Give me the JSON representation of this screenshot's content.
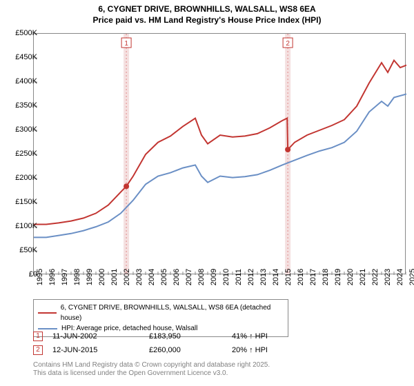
{
  "title_line1": "6, CYGNET DRIVE, BROWNHILLS, WALSALL, WS8 6EA",
  "title_line2": "Price paid vs. HM Land Registry's House Price Index (HPI)",
  "chart": {
    "type": "line",
    "background_color": "#ffffff",
    "border_color": "#888888",
    "tick_font_size": 11,
    "x": {
      "min": 1995,
      "max": 2025,
      "ticks": [
        1995,
        1996,
        1997,
        1998,
        1999,
        2000,
        2001,
        2002,
        2003,
        2004,
        2005,
        2006,
        2007,
        2008,
        2009,
        2010,
        2011,
        2012,
        2013,
        2014,
        2015,
        2016,
        2017,
        2018,
        2019,
        2020,
        2021,
        2022,
        2023,
        2024,
        2025
      ]
    },
    "y": {
      "min": 0,
      "max": 500000,
      "ticks": [
        0,
        50000,
        100000,
        150000,
        200000,
        250000,
        300000,
        350000,
        400000,
        450000,
        500000
      ],
      "tick_labels": [
        "£0",
        "£50K",
        "£100K",
        "£150K",
        "£200K",
        "£250K",
        "£300K",
        "£350K",
        "£400K",
        "£450K",
        "£500K"
      ]
    },
    "events": [
      {
        "n": "1",
        "x": 2002.45,
        "color": "#c23531"
      },
      {
        "n": "2",
        "x": 2015.45,
        "color": "#c23531"
      }
    ],
    "event_band_color": "#f4e0e0",
    "event_line_color": "#e28a8a",
    "series": [
      {
        "id": "price_paid",
        "color": "#c23531",
        "width": 2,
        "label": "6, CYGNET DRIVE, BROWNHILLS, WALSALL, WS8 6EA (detached house)",
        "points": [
          [
            1995,
            105000
          ],
          [
            1996,
            105000
          ],
          [
            1997,
            108000
          ],
          [
            1998,
            112000
          ],
          [
            1999,
            118000
          ],
          [
            2000,
            128000
          ],
          [
            2001,
            145000
          ],
          [
            2002,
            172000
          ],
          [
            2002.45,
            183950
          ],
          [
            2003,
            205000
          ],
          [
            2004,
            250000
          ],
          [
            2005,
            275000
          ],
          [
            2006,
            288000
          ],
          [
            2007,
            308000
          ],
          [
            2008,
            325000
          ],
          [
            2008.5,
            290000
          ],
          [
            2009,
            272000
          ],
          [
            2010,
            290000
          ],
          [
            2011,
            286000
          ],
          [
            2012,
            288000
          ],
          [
            2013,
            293000
          ],
          [
            2014,
            305000
          ],
          [
            2015,
            320000
          ],
          [
            2015.4,
            325000
          ],
          [
            2015.45,
            260000
          ],
          [
            2016,
            275000
          ],
          [
            2017,
            290000
          ],
          [
            2018,
            300000
          ],
          [
            2019,
            310000
          ],
          [
            2020,
            322000
          ],
          [
            2021,
            350000
          ],
          [
            2022,
            398000
          ],
          [
            2023,
            440000
          ],
          [
            2023.5,
            420000
          ],
          [
            2024,
            445000
          ],
          [
            2024.5,
            430000
          ],
          [
            2025,
            435000
          ]
        ],
        "markers": [
          [
            2002.45,
            183950
          ],
          [
            2015.45,
            260000
          ]
        ]
      },
      {
        "id": "hpi",
        "color": "#6a8fc5",
        "width": 2,
        "label": "HPI: Average price, detached house, Walsall",
        "points": [
          [
            1995,
            78000
          ],
          [
            1996,
            78000
          ],
          [
            1997,
            82000
          ],
          [
            1998,
            86000
          ],
          [
            1999,
            92000
          ],
          [
            2000,
            100000
          ],
          [
            2001,
            110000
          ],
          [
            2002,
            128000
          ],
          [
            2003,
            155000
          ],
          [
            2004,
            188000
          ],
          [
            2005,
            205000
          ],
          [
            2006,
            212000
          ],
          [
            2007,
            222000
          ],
          [
            2008,
            228000
          ],
          [
            2008.5,
            205000
          ],
          [
            2009,
            192000
          ],
          [
            2010,
            205000
          ],
          [
            2011,
            202000
          ],
          [
            2012,
            204000
          ],
          [
            2013,
            208000
          ],
          [
            2014,
            217000
          ],
          [
            2015,
            228000
          ],
          [
            2016,
            238000
          ],
          [
            2017,
            248000
          ],
          [
            2018,
            257000
          ],
          [
            2019,
            264000
          ],
          [
            2020,
            275000
          ],
          [
            2021,
            298000
          ],
          [
            2022,
            338000
          ],
          [
            2023,
            360000
          ],
          [
            2023.5,
            350000
          ],
          [
            2024,
            368000
          ],
          [
            2025,
            375000
          ]
        ]
      }
    ]
  },
  "legend": {
    "item1": "6, CYGNET DRIVE, BROWNHILLS, WALSALL, WS8 6EA (detached house)",
    "item2": "HPI: Average price, detached house, Walsall"
  },
  "annotations": [
    {
      "n": "1",
      "date": "11-JUN-2002",
      "price": "£183,950",
      "pct": "41% ↑ HPI",
      "color": "#c23531"
    },
    {
      "n": "2",
      "date": "12-JUN-2015",
      "price": "£260,000",
      "pct": "20% ↑ HPI",
      "color": "#c23531"
    }
  ],
  "footer_line1": "Contains HM Land Registry data © Crown copyright and database right 2025.",
  "footer_line2": "This data is licensed under the Open Government Licence v3.0."
}
